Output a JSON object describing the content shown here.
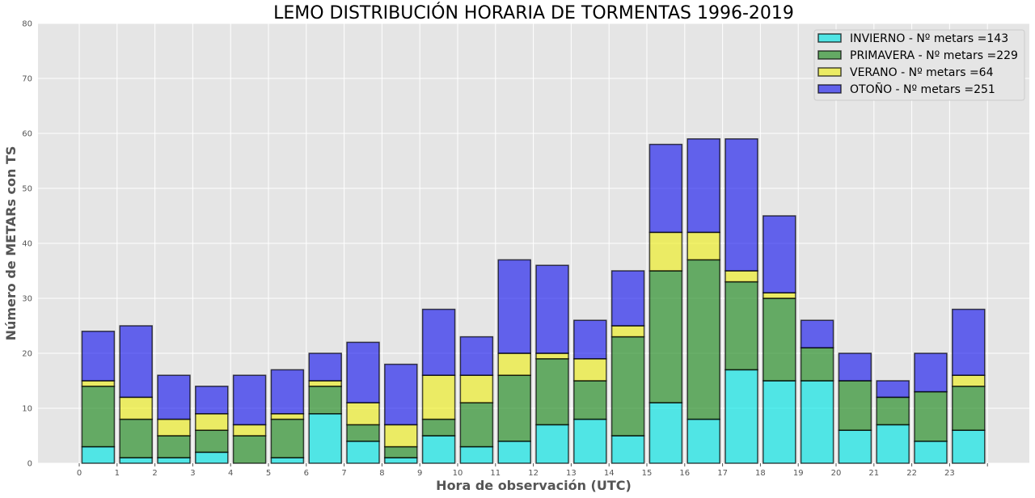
{
  "chart_data": {
    "type": "bar",
    "stacked": true,
    "title": "LEMO DISTRIBUCIÓN HORARIA DE TORMENTAS 1996-2019",
    "xlabel": "Hora de observación (UTC)",
    "ylabel": "Número de METARs con TS",
    "categories": [
      "0",
      "1",
      "2",
      "3",
      "4",
      "5",
      "6",
      "7",
      "8",
      "9",
      "10",
      "11",
      "12",
      "13",
      "14",
      "15",
      "16",
      "17",
      "18",
      "19",
      "20",
      "21",
      "22",
      "23"
    ],
    "ylim": [
      0,
      80
    ],
    "yticks": [
      0,
      10,
      20,
      30,
      40,
      50,
      60,
      70,
      80
    ],
    "grid": true,
    "legend_position": "top-right",
    "series": [
      {
        "name": "INVIERNO - Nº metars =143",
        "color": "#00e5e5",
        "values": [
          3,
          1,
          1,
          2,
          0,
          1,
          9,
          4,
          1,
          5,
          3,
          4,
          7,
          8,
          5,
          11,
          8,
          17,
          15,
          15,
          6,
          7,
          4,
          6
        ]
      },
      {
        "name": "PRIMAVERA - Nº metars =229",
        "color": "#1e8a1e",
        "values": [
          11,
          7,
          4,
          4,
          5,
          7,
          5,
          3,
          2,
          3,
          8,
          12,
          12,
          7,
          18,
          24,
          29,
          16,
          15,
          6,
          9,
          5,
          9,
          8
        ]
      },
      {
        "name": "VERANO - Nº metars =64",
        "color": "#eeee1e",
        "values": [
          1,
          4,
          3,
          3,
          2,
          1,
          1,
          4,
          4,
          8,
          5,
          4,
          1,
          4,
          2,
          7,
          5,
          2,
          1,
          0,
          0,
          0,
          0,
          2
        ]
      },
      {
        "name": "OTOÑO - Nº metars =251",
        "color": "#1a1aee",
        "values": [
          9,
          13,
          8,
          5,
          9,
          8,
          5,
          11,
          11,
          12,
          7,
          17,
          16,
          7,
          10,
          16,
          17,
          24,
          14,
          5,
          5,
          3,
          7,
          12
        ]
      }
    ]
  }
}
